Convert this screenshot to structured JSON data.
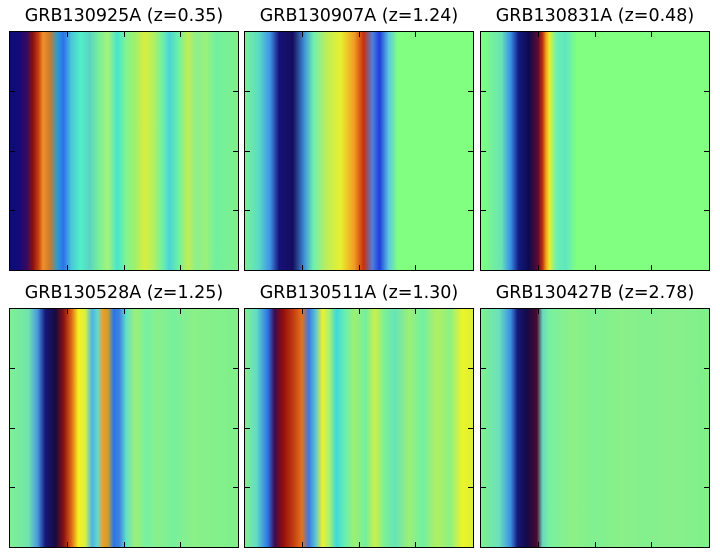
{
  "chart_data": [
    {
      "type": "heatmap",
      "title": "GRB130925A (z=0.35)",
      "colormap": "jet",
      "variation": "horizontal (vertical bands)",
      "fill_color": "#80ff80",
      "bands": [
        {
          "pos": 0.0,
          "color": "#0b0f72"
        },
        {
          "pos": 0.04,
          "color": "#140a7a"
        },
        {
          "pos": 0.075,
          "color": "#3a0a60"
        },
        {
          "pos": 0.1,
          "color": "#8a0f12"
        },
        {
          "pos": 0.125,
          "color": "#c84010"
        },
        {
          "pos": 0.145,
          "color": "#f29028"
        },
        {
          "pos": 0.175,
          "color": "#c77c2e"
        },
        {
          "pos": 0.21,
          "color": "#2a9ad2"
        },
        {
          "pos": 0.235,
          "color": "#2e6ff0"
        },
        {
          "pos": 0.27,
          "color": "#49c9d6"
        },
        {
          "pos": 0.31,
          "color": "#50f0c8"
        },
        {
          "pos": 0.35,
          "color": "#5cd3c2"
        },
        {
          "pos": 0.39,
          "color": "#78f09a"
        },
        {
          "pos": 0.43,
          "color": "#a6f279"
        },
        {
          "pos": 0.47,
          "color": "#44e6cf"
        },
        {
          "pos": 0.51,
          "color": "#82f58d"
        },
        {
          "pos": 0.55,
          "color": "#a0f06a"
        },
        {
          "pos": 0.59,
          "color": "#d8ee40"
        },
        {
          "pos": 0.63,
          "color": "#b4f060"
        },
        {
          "pos": 0.67,
          "color": "#6cf0a8"
        },
        {
          "pos": 0.7,
          "color": "#4ad4d8"
        },
        {
          "pos": 0.74,
          "color": "#6ef2a2"
        },
        {
          "pos": 0.78,
          "color": "#bfee54"
        },
        {
          "pos": 0.82,
          "color": "#8af090"
        },
        {
          "pos": 0.86,
          "color": "#9cf078"
        },
        {
          "pos": 0.9,
          "color": "#72f0a0"
        },
        {
          "pos": 1.0,
          "color": "#7ef08c"
        }
      ]
    },
    {
      "type": "heatmap",
      "title": "GRB130907A (z=1.24)",
      "colormap": "jet",
      "variation": "horizontal (vertical bands)",
      "fill_color": "#80ff80",
      "bands": [
        {
          "pos": 0.0,
          "color": "#78f09a"
        },
        {
          "pos": 0.06,
          "color": "#5adcc4"
        },
        {
          "pos": 0.11,
          "color": "#3f93e6"
        },
        {
          "pos": 0.15,
          "color": "#14127a"
        },
        {
          "pos": 0.21,
          "color": "#160c5c"
        },
        {
          "pos": 0.26,
          "color": "#3f8fd8"
        },
        {
          "pos": 0.3,
          "color": "#6ef0b0"
        },
        {
          "pos": 0.36,
          "color": "#c0ee58"
        },
        {
          "pos": 0.42,
          "color": "#e8f030"
        },
        {
          "pos": 0.48,
          "color": "#f29a20"
        },
        {
          "pos": 0.52,
          "color": "#c8300e"
        },
        {
          "pos": 0.56,
          "color": "#4f7fe0"
        },
        {
          "pos": 0.59,
          "color": "#1e3ddc"
        },
        {
          "pos": 0.63,
          "color": "#5cc8e0"
        },
        {
          "pos": 0.67,
          "color": "#80ff80"
        },
        {
          "pos": 1.0,
          "color": "#80ff80"
        }
      ]
    },
    {
      "type": "heatmap",
      "title": "GRB130831A (z=0.48)",
      "colormap": "jet",
      "variation": "horizontal (vertical bands)",
      "fill_color": "#80ff80",
      "bands": [
        {
          "pos": 0.0,
          "color": "#80ff80"
        },
        {
          "pos": 0.09,
          "color": "#68e4b4"
        },
        {
          "pos": 0.13,
          "color": "#3890e8"
        },
        {
          "pos": 0.165,
          "color": "#121a80"
        },
        {
          "pos": 0.21,
          "color": "#0e0a50"
        },
        {
          "pos": 0.25,
          "color": "#5c0a30"
        },
        {
          "pos": 0.27,
          "color": "#c03010"
        },
        {
          "pos": 0.285,
          "color": "#f2a018"
        },
        {
          "pos": 0.3,
          "color": "#e8ee30"
        },
        {
          "pos": 0.33,
          "color": "#6cf0b0"
        },
        {
          "pos": 0.37,
          "color": "#5ee6c2"
        },
        {
          "pos": 0.42,
          "color": "#80ff80"
        },
        {
          "pos": 1.0,
          "color": "#80ff80"
        }
      ]
    },
    {
      "type": "heatmap",
      "title": "GRB130528A (z=1.25)",
      "colormap": "jet",
      "variation": "horizontal (vertical bands)",
      "fill_color": "#80ff80",
      "bands": [
        {
          "pos": 0.0,
          "color": "#80f090"
        },
        {
          "pos": 0.08,
          "color": "#70e4ae"
        },
        {
          "pos": 0.12,
          "color": "#4a9ae0"
        },
        {
          "pos": 0.155,
          "color": "#14187a"
        },
        {
          "pos": 0.2,
          "color": "#180a40"
        },
        {
          "pos": 0.235,
          "color": "#8a1010"
        },
        {
          "pos": 0.27,
          "color": "#e06818"
        },
        {
          "pos": 0.3,
          "color": "#f8f020"
        },
        {
          "pos": 0.33,
          "color": "#d8f040"
        },
        {
          "pos": 0.36,
          "color": "#4ab6e6"
        },
        {
          "pos": 0.385,
          "color": "#6cd6c8"
        },
        {
          "pos": 0.41,
          "color": "#f49a20"
        },
        {
          "pos": 0.43,
          "color": "#c8a030"
        },
        {
          "pos": 0.455,
          "color": "#2a76e6"
        },
        {
          "pos": 0.48,
          "color": "#3f82e0"
        },
        {
          "pos": 0.51,
          "color": "#60e2c8"
        },
        {
          "pos": 0.55,
          "color": "#9cf078"
        },
        {
          "pos": 0.6,
          "color": "#78f0a0"
        },
        {
          "pos": 0.65,
          "color": "#88f08a"
        },
        {
          "pos": 0.72,
          "color": "#76f09c"
        },
        {
          "pos": 0.8,
          "color": "#8af088"
        },
        {
          "pos": 1.0,
          "color": "#7ef08c"
        }
      ]
    },
    {
      "type": "heatmap",
      "title": "GRB130511A (z=1.30)",
      "colormap": "jet",
      "variation": "horizontal (vertical bands)",
      "fill_color": "#80ff80",
      "bands": [
        {
          "pos": 0.0,
          "color": "#80f090"
        },
        {
          "pos": 0.05,
          "color": "#62dcc4"
        },
        {
          "pos": 0.1,
          "color": "#2e74e6"
        },
        {
          "pos": 0.13,
          "color": "#3a0c50"
        },
        {
          "pos": 0.165,
          "color": "#900c0c"
        },
        {
          "pos": 0.21,
          "color": "#c23a10"
        },
        {
          "pos": 0.25,
          "color": "#e07420"
        },
        {
          "pos": 0.28,
          "color": "#3e78e4"
        },
        {
          "pos": 0.31,
          "color": "#5ac8d4"
        },
        {
          "pos": 0.34,
          "color": "#eef030"
        },
        {
          "pos": 0.37,
          "color": "#a8f070"
        },
        {
          "pos": 0.4,
          "color": "#40d8d8"
        },
        {
          "pos": 0.44,
          "color": "#68f0b0"
        },
        {
          "pos": 0.48,
          "color": "#9cf070"
        },
        {
          "pos": 0.53,
          "color": "#72f0a0"
        },
        {
          "pos": 0.57,
          "color": "#ccf048"
        },
        {
          "pos": 0.61,
          "color": "#7cf094"
        },
        {
          "pos": 0.66,
          "color": "#66e4b8"
        },
        {
          "pos": 0.72,
          "color": "#9cf076"
        },
        {
          "pos": 0.78,
          "color": "#70f0a4"
        },
        {
          "pos": 0.84,
          "color": "#b0f062"
        },
        {
          "pos": 0.9,
          "color": "#8cf084"
        },
        {
          "pos": 0.955,
          "color": "#eef428"
        },
        {
          "pos": 1.0,
          "color": "#d8f038"
        }
      ]
    },
    {
      "type": "heatmap",
      "title": "GRB130427B (z=2.78)",
      "colormap": "jet",
      "variation": "horizontal (vertical bands)",
      "fill_color": "#80ff80",
      "bands": [
        {
          "pos": 0.0,
          "color": "#80f090"
        },
        {
          "pos": 0.08,
          "color": "#6ae0bc"
        },
        {
          "pos": 0.13,
          "color": "#3a90e4"
        },
        {
          "pos": 0.16,
          "color": "#14187a"
        },
        {
          "pos": 0.2,
          "color": "#120a48"
        },
        {
          "pos": 0.245,
          "color": "#4a0a30"
        },
        {
          "pos": 0.27,
          "color": "#6ad8c0"
        },
        {
          "pos": 0.3,
          "color": "#78f0a0"
        },
        {
          "pos": 0.4,
          "color": "#8cf086"
        },
        {
          "pos": 0.5,
          "color": "#80f090"
        },
        {
          "pos": 0.62,
          "color": "#8af088"
        },
        {
          "pos": 0.72,
          "color": "#82f08e"
        },
        {
          "pos": 0.85,
          "color": "#88f08a"
        },
        {
          "pos": 1.0,
          "color": "#7ef08c"
        }
      ]
    }
  ],
  "colors": {
    "frame": "#000000",
    "background": "#ffffff"
  }
}
